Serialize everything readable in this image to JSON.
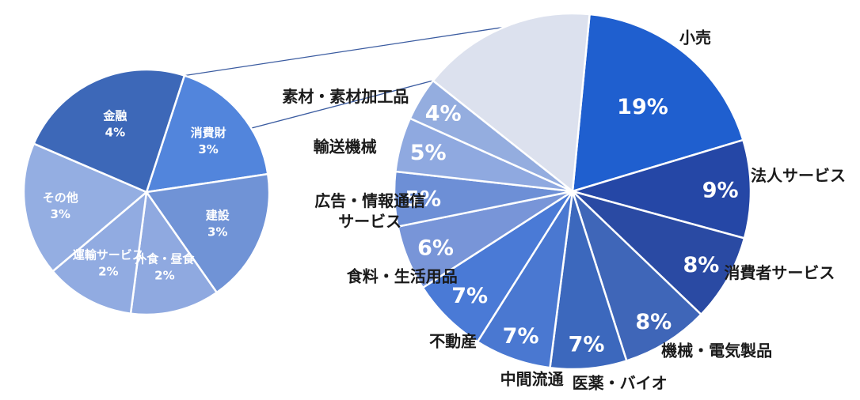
{
  "chart_data": [
    {
      "type": "pie",
      "slices": [
        {
          "label": "小売",
          "value": 19,
          "value_label": "19%",
          "color": "#1f5fcf"
        },
        {
          "label": "法人サービス",
          "value": 9,
          "value_label": "9%",
          "color": "#2547a6"
        },
        {
          "label": "消費者サービス",
          "value": 8,
          "value_label": "8%",
          "color": "#2a4aa3"
        },
        {
          "label": "機械・電気製品",
          "value": 8,
          "value_label": "8%",
          "color": "#3f66b8"
        },
        {
          "label": "医薬・バイオ",
          "value": 7,
          "value_label": "7%",
          "color": "#3c68bd"
        },
        {
          "label": "中間流通",
          "value": 7,
          "value_label": "7%",
          "color": "#4a78d1"
        },
        {
          "label": "不動産",
          "value": 7,
          "value_label": "7%",
          "color": "#4a7ad6"
        },
        {
          "label": "食料・生活用品",
          "value": 6,
          "value_label": "6%",
          "color": "#7895d8"
        },
        {
          "label": "広告・情報通信\nサービス",
          "value": 5,
          "value_label": "5%",
          "color": "#6d8fd6"
        },
        {
          "label": "輸送機械",
          "value": 5,
          "value_label": "5%",
          "color": "#8fa9e0"
        },
        {
          "label": "素材・素材加工品",
          "value": 4,
          "value_label": "4%",
          "color": "#94addf"
        },
        {
          "label": "",
          "value": 16,
          "value_label": "",
          "color": "#dce1ee"
        }
      ]
    },
    {
      "type": "pie",
      "slices": [
        {
          "label": "消費財",
          "value": 3,
          "value_label": "3%",
          "color": "#5285dc"
        },
        {
          "label": "建設",
          "value": 3,
          "value_label": "3%",
          "color": "#7093d6"
        },
        {
          "label": "外食・昼食",
          "value": 2,
          "value_label": "2%",
          "color": "#8fa9e0"
        },
        {
          "label": "運輸サービス",
          "value": 2,
          "value_label": "2%",
          "color": "#91abe1"
        },
        {
          "label": "その他",
          "value": 3,
          "value_label": "3%",
          "color": "#94aee2"
        },
        {
          "label": "金融",
          "value": 4,
          "value_label": "4%",
          "color": "#3d68b8"
        }
      ]
    }
  ],
  "colors": {
    "connector": "#3a5ba0",
    "slice_border": "#ffffff"
  }
}
